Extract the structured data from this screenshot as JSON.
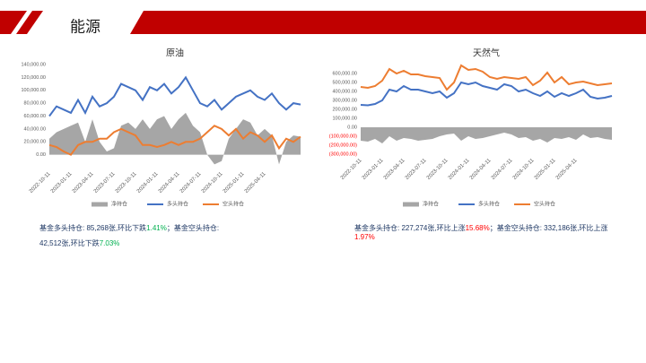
{
  "header": {
    "title": "能源"
  },
  "chart_data": [
    {
      "type": "line",
      "title": "原油",
      "categories": [
        "2022-10-11",
        null,
        null,
        "2023-01-11",
        null,
        null,
        "2023-04-11",
        null,
        null,
        "2023-07-11",
        null,
        null,
        "2023-10-11",
        null,
        null,
        "2024-01-11",
        null,
        null,
        "2024-04-11",
        null,
        null,
        "2024-07-11",
        null,
        null,
        "2024-10-11",
        null,
        null,
        "2025-01-11",
        null,
        null,
        "2025-04-11",
        null,
        null,
        null,
        null,
        null
      ],
      "series": [
        {
          "name": "净持仓",
          "kind": "area",
          "color": "#a6a6a6",
          "values": [
            25000,
            35000,
            40000,
            45000,
            50000,
            20000,
            55000,
            20000,
            5000,
            10000,
            45000,
            50000,
            40000,
            55000,
            40000,
            55000,
            60000,
            40000,
            55000,
            65000,
            45000,
            35000,
            0,
            -15000,
            -10000,
            25000,
            40000,
            55000,
            50000,
            30000,
            40000,
            30000,
            -15000,
            20000,
            30000,
            28000
          ]
        },
        {
          "name": "多头持仓",
          "kind": "line",
          "color": "#4472c4",
          "values": [
            60000,
            75000,
            70000,
            65000,
            85000,
            65000,
            90000,
            75000,
            80000,
            90000,
            110000,
            105000,
            100000,
            85000,
            105000,
            100000,
            110000,
            95000,
            105000,
            120000,
            100000,
            80000,
            75000,
            85000,
            70000,
            80000,
            90000,
            95000,
            100000,
            90000,
            85000,
            95000,
            80000,
            70000,
            80000,
            78000
          ]
        },
        {
          "name": "空头持仓",
          "kind": "line",
          "color": "#ed7d31",
          "values": [
            15000,
            12000,
            5000,
            0,
            15000,
            20000,
            20000,
            25000,
            25000,
            35000,
            40000,
            35000,
            30000,
            15000,
            15000,
            12000,
            15000,
            20000,
            15000,
            20000,
            20000,
            25000,
            35000,
            45000,
            40000,
            30000,
            40000,
            25000,
            35000,
            30000,
            20000,
            30000,
            10000,
            25000,
            20000,
            28000
          ]
        }
      ],
      "ylim": [
        -20000,
        140000
      ],
      "yticks": [
        {
          "value": 0,
          "label": "0.00"
        },
        {
          "value": 20000,
          "label": "20,000.00"
        },
        {
          "value": 40000,
          "label": "40,000.00"
        },
        {
          "value": 60000,
          "label": "60,000.00"
        },
        {
          "value": 80000,
          "label": "80,000.00"
        },
        {
          "value": 100000,
          "label": "100,000.00"
        },
        {
          "value": 120000,
          "label": "120,000.00"
        },
        {
          "value": 140000,
          "label": "140,000.00"
        }
      ],
      "negative_tick_color": "#ff0000",
      "grid": false,
      "legend": "bottom",
      "note": [
        {
          "text": "基金多头持仓: 85,268张,环比下跌",
          "color": "#1f3864"
        },
        {
          "text": "1.41%",
          "color": "#00b050"
        },
        {
          "text": "；基金空头持仓: 42,512张,环比下跌",
          "color": "#1f3864"
        },
        {
          "text": "7.03%",
          "color": "#00b050"
        }
      ]
    },
    {
      "type": "line",
      "title": "天然气",
      "categories": [
        "2022-10-11",
        null,
        null,
        "2023-01-11",
        null,
        null,
        "2023-04-11",
        null,
        null,
        "2023-07-11",
        null,
        null,
        "2023-10-11",
        null,
        null,
        "2024-01-11",
        null,
        null,
        "2024-04-11",
        null,
        null,
        "2024-07-11",
        null,
        null,
        "2024-10-11",
        null,
        null,
        "2025-01-11",
        null,
        null,
        "2025-04-11",
        null,
        null,
        null,
        null,
        null
      ],
      "series": [
        {
          "name": "净持仓",
          "kind": "area",
          "color": "#a6a6a6",
          "values": [
            -150000,
            -160000,
            -130000,
            -180000,
            -100000,
            -150000,
            -120000,
            -130000,
            -150000,
            -140000,
            -130000,
            -100000,
            -80000,
            -70000,
            -150000,
            -100000,
            -130000,
            -120000,
            -100000,
            -80000,
            -60000,
            -80000,
            -120000,
            -110000,
            -150000,
            -130000,
            -170000,
            -120000,
            -130000,
            -110000,
            -140000,
            -80000,
            -120000,
            -110000,
            -130000,
            -140000
          ]
        },
        {
          "name": "多头持仓",
          "kind": "line",
          "color": "#4472c4",
          "values": [
            250000,
            245000,
            260000,
            300000,
            420000,
            400000,
            460000,
            420000,
            420000,
            400000,
            380000,
            400000,
            330000,
            380000,
            500000,
            480000,
            500000,
            460000,
            440000,
            420000,
            480000,
            460000,
            400000,
            420000,
            380000,
            350000,
            400000,
            340000,
            380000,
            350000,
            380000,
            420000,
            340000,
            320000,
            330000,
            350000
          ]
        },
        {
          "name": "空头持仓",
          "kind": "line",
          "color": "#ed7d31",
          "values": [
            450000,
            440000,
            460000,
            520000,
            650000,
            600000,
            630000,
            590000,
            590000,
            570000,
            560000,
            550000,
            420000,
            500000,
            690000,
            640000,
            650000,
            620000,
            560000,
            540000,
            560000,
            550000,
            540000,
            560000,
            470000,
            520000,
            610000,
            500000,
            560000,
            480000,
            500000,
            510000,
            490000,
            470000,
            480000,
            490000
          ]
        }
      ],
      "ylim": [
        -300000,
        700000
      ],
      "yticks": [
        {
          "value": -300000,
          "label": "(300,000.00)"
        },
        {
          "value": -200000,
          "label": "(200,000.00)"
        },
        {
          "value": -100000,
          "label": "(100,000.00)"
        },
        {
          "value": 0,
          "label": "0.00"
        },
        {
          "value": 100000,
          "label": "100,000.00"
        },
        {
          "value": 200000,
          "label": "200,000.00"
        },
        {
          "value": 300000,
          "label": "300,000.00"
        },
        {
          "value": 400000,
          "label": "400,000.00"
        },
        {
          "value": 500000,
          "label": "500,000.00"
        },
        {
          "value": 600000,
          "label": "600,000.00"
        }
      ],
      "negative_tick_color": "#ff0000",
      "grid": false,
      "legend": "bottom",
      "note": [
        {
          "text": "基金多头持仓: 227,274张,环比上涨",
          "color": "#1f3864"
        },
        {
          "text": "15.68%",
          "color": "#ff0000"
        },
        {
          "text": "；基金空头持仓: 332,186张,环比上涨",
          "color": "#1f3864"
        },
        {
          "text": "1.97%",
          "color": "#ff0000"
        }
      ]
    }
  ]
}
